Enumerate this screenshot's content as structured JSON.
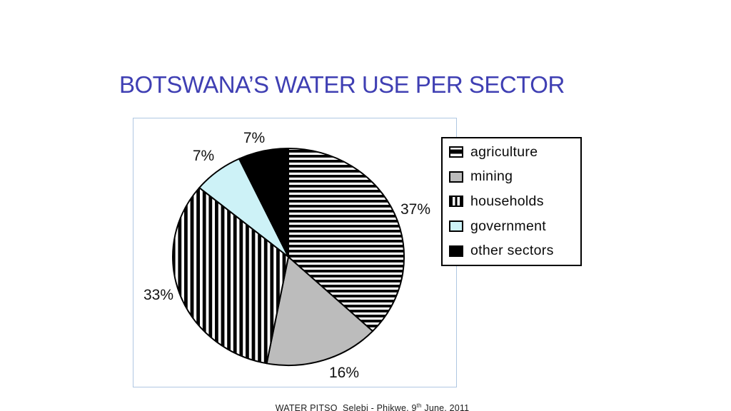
{
  "slide": {
    "title": "BOTSWANA’S WATER USE PER SECTOR",
    "footer_prefix": "WATER PITSO  Selebi - Phikwe, 9",
    "footer_sup": "th",
    "footer_suffix": " June, 2011"
  },
  "colors": {
    "title_text": "#3f3fb3",
    "chart_frame_border": "#afc7e2",
    "mining_gray": "#bcbcbc",
    "government_cyan": "#cdf2f7",
    "other_black": "#000000",
    "stripe_black": "#000000",
    "stripe_white": "#ffffff"
  },
  "chart_data": {
    "type": "pie",
    "title": "BOTSWANA’S WATER USE PER SECTOR",
    "start_angle": "12 o'clock",
    "direction": "clockwise",
    "unit": "%",
    "slices": [
      {
        "label": "agriculture",
        "value": 37,
        "display": "37%",
        "fill_style": "horizontal black stripes on white"
      },
      {
        "label": "mining",
        "value": 16,
        "display": "16%",
        "fill_style": "solid gray #bcbcbc"
      },
      {
        "label": "households",
        "value": 33,
        "display": "33%",
        "fill_style": "vertical black stripes on white"
      },
      {
        "label": "government",
        "value": 7,
        "display": "7%",
        "fill_style": "solid light cyan #cdf2f7"
      },
      {
        "label": "other sectors",
        "value": 7,
        "display": "7%",
        "fill_style": "solid black"
      }
    ],
    "legend": {
      "position": "right",
      "border": "black box on white",
      "items": [
        "agriculture",
        "mining",
        "households",
        "government",
        "other sectors"
      ]
    }
  }
}
